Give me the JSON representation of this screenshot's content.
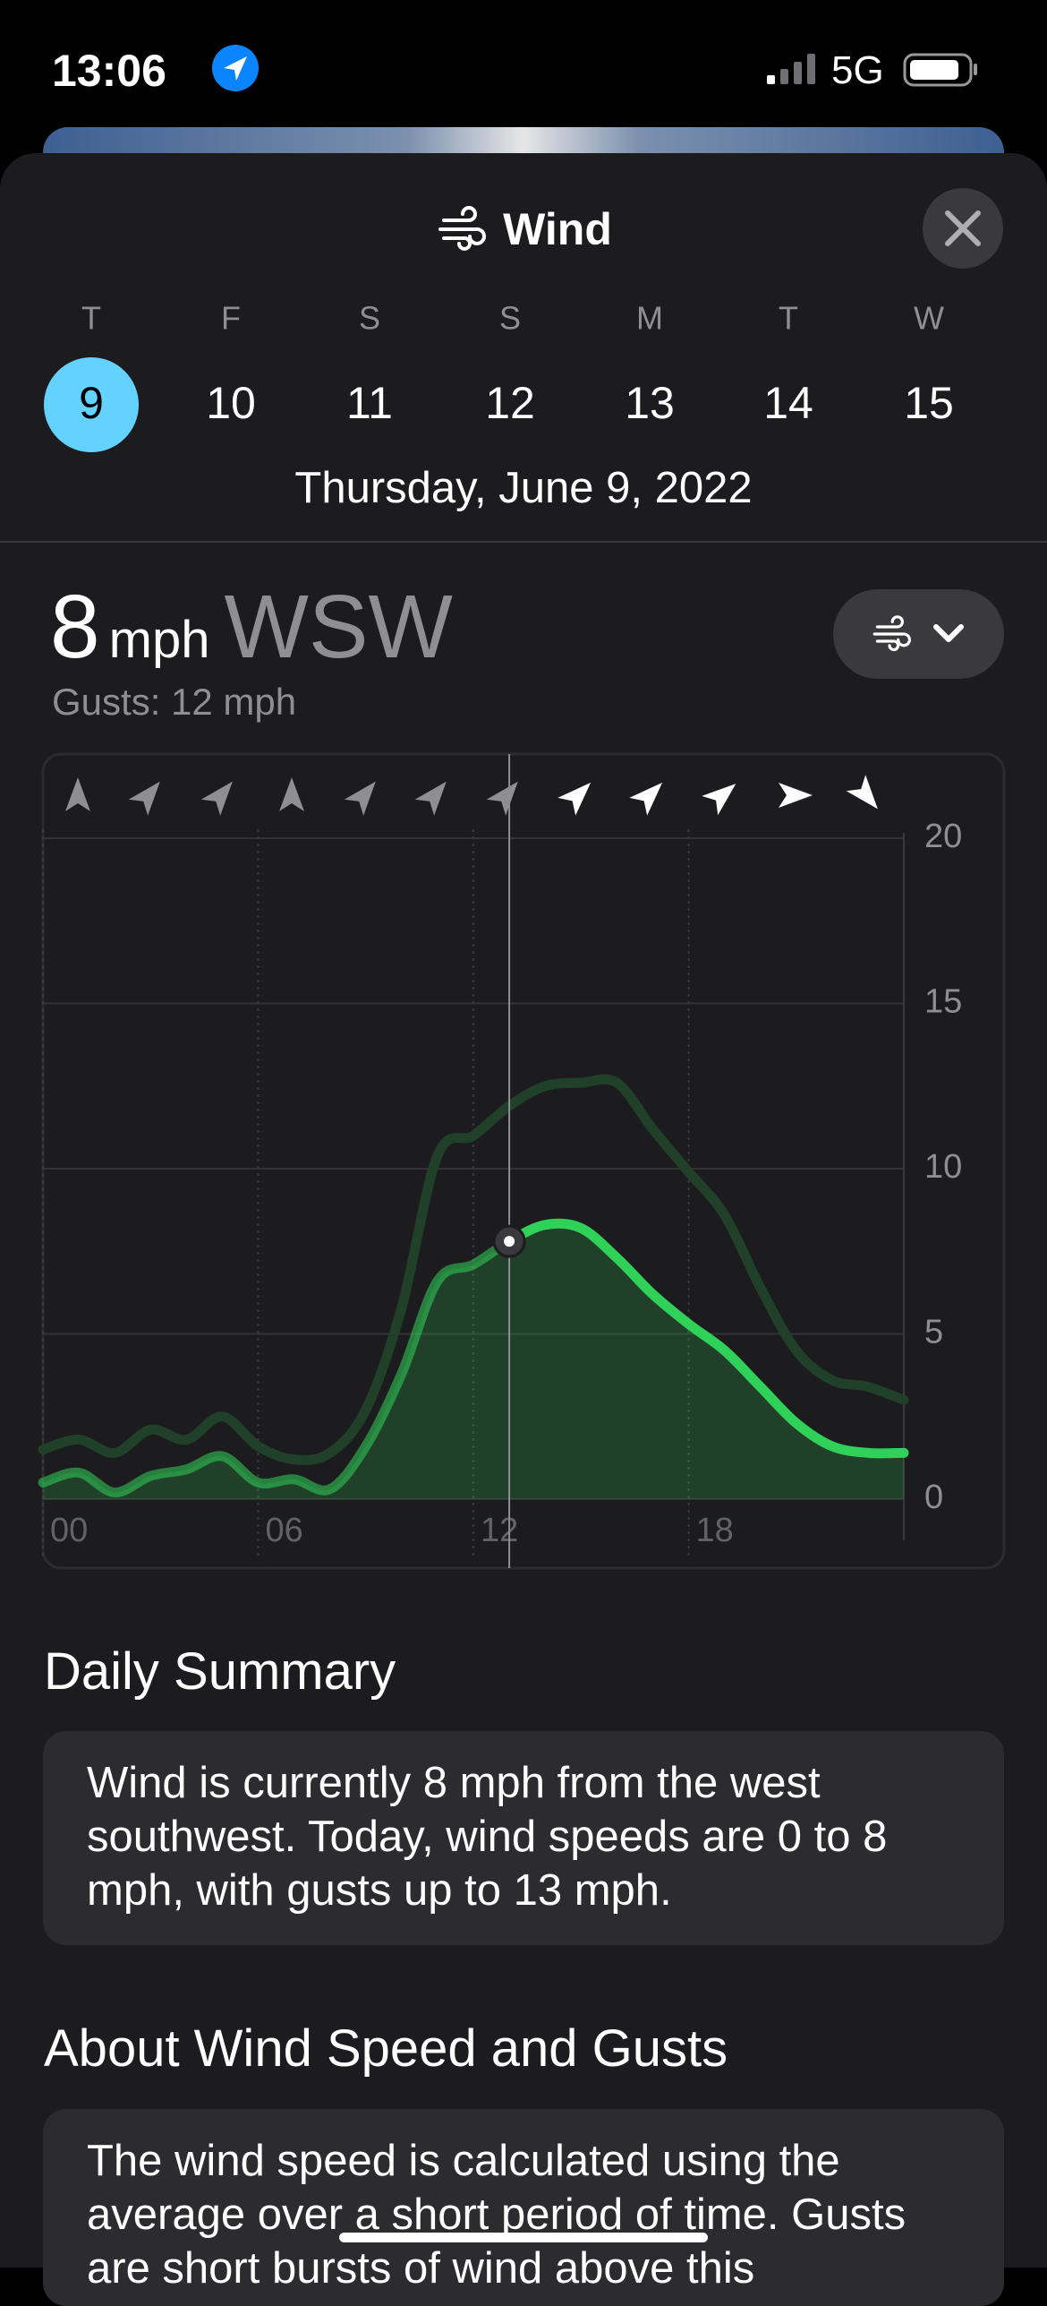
{
  "status_bar": {
    "time": "13:06",
    "network": "5G"
  },
  "header": {
    "title": "Wind"
  },
  "days": [
    {
      "weekday": "T",
      "day": 9
    },
    {
      "weekday": "F",
      "day": 10
    },
    {
      "weekday": "S",
      "day": 11
    },
    {
      "weekday": "S",
      "day": 12
    },
    {
      "weekday": "M",
      "day": 13
    },
    {
      "weekday": "T",
      "day": 14
    },
    {
      "weekday": "W",
      "day": 15
    }
  ],
  "selected_date": "Thursday, June 9, 2022",
  "current": {
    "speed": 8,
    "unit": "mph",
    "direction": "WSW",
    "gusts": "Gusts: 12 mph"
  },
  "chart_data": {
    "type": "line",
    "x": [
      0,
      1,
      2,
      3,
      4,
      5,
      6,
      7,
      8,
      9,
      10,
      11,
      12,
      13,
      14,
      15,
      16,
      17,
      18,
      19,
      20,
      21,
      22,
      23,
      24
    ],
    "series": [
      {
        "color": "#30d158",
        "values": [
          0.5,
          0.8,
          0.2,
          0.7,
          0.9,
          1.3,
          0.5,
          0.6,
          0.3,
          1.6,
          3.8,
          6.6,
          7.1,
          7.8,
          8.3,
          8.2,
          7.3,
          6.2,
          5.3,
          4.5,
          3.4,
          2.3,
          1.6,
          1.4,
          1.4
        ]
      },
      {
        "color": "#21402a",
        "values": [
          1.5,
          1.8,
          1.4,
          2.1,
          1.8,
          2.5,
          1.6,
          1.2,
          1.4,
          2.7,
          5.8,
          10.4,
          11.0,
          11.9,
          12.5,
          12.6,
          12.6,
          11.2,
          9.9,
          8.6,
          6.4,
          4.5,
          3.6,
          3.4,
          3.0
        ]
      }
    ],
    "xlim": [
      0,
      24
    ],
    "ylim": [
      0,
      20
    ],
    "xticks": [
      {
        "value": 0,
        "label": "00"
      },
      {
        "value": 6,
        "label": "06"
      },
      {
        "value": 12,
        "label": "12"
      },
      {
        "value": 18,
        "label": "18"
      }
    ],
    "yticks": [
      0,
      5,
      10,
      15,
      20
    ],
    "grid": true
  },
  "daily_summary": {
    "title": "Daily Summary",
    "text": "Wind is currently 8 mph from the west southwest. Today, wind speeds are 0 to 8 mph, with gusts up to 13 mph."
  },
  "about": {
    "title": "About Wind Speed and Gusts",
    "text": "The wind speed is calculated using the average over a short period of time. Gusts are short bursts of wind above this"
  }
}
